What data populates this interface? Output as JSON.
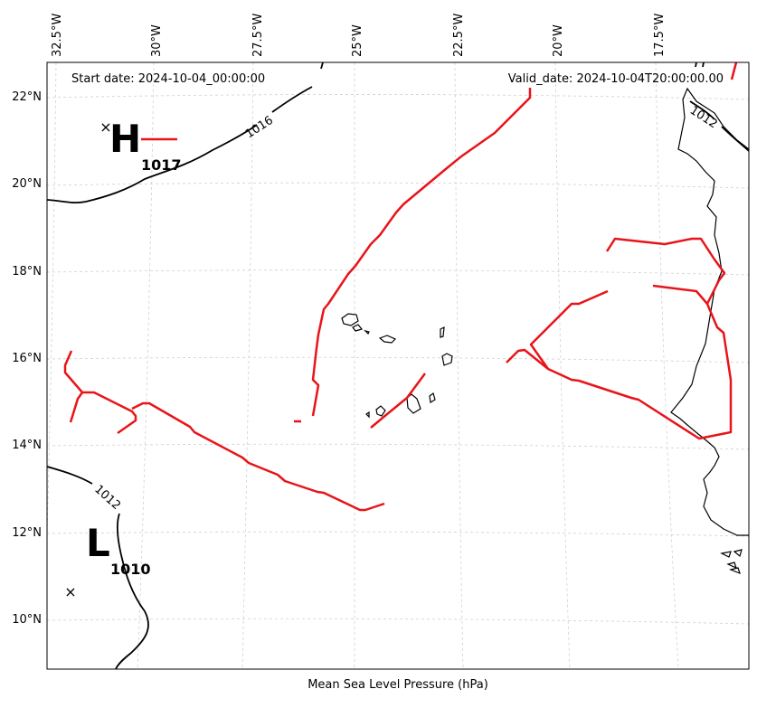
{
  "header": {
    "start_date": "Start date: 2024-10-04_00:00:00",
    "valid_date": "Valid_date: 2024-10-04T20:00:00.00"
  },
  "axis": {
    "xlabel": "Mean Sea Level Pressure (hPa)",
    "lon_ticks": [
      "32.5°W",
      "30°W",
      "27.5°W",
      "25°W",
      "22.5°W",
      "20°W",
      "17.5°W"
    ],
    "lat_ticks": [
      "22°N",
      "20°N",
      "18°N",
      "16°N",
      "14°N",
      "12°N",
      "10°N"
    ]
  },
  "isobar_labels": [
    "1016",
    "1012",
    "1012"
  ],
  "pressure_centers": {
    "high": {
      "letter": "H",
      "value": "1017"
    },
    "low": {
      "letter": "L",
      "value": "1010"
    }
  },
  "colors": {
    "front": "#e8141a",
    "isobar": "#000000",
    "grid": "#cccccc",
    "coast": "#000000"
  }
}
